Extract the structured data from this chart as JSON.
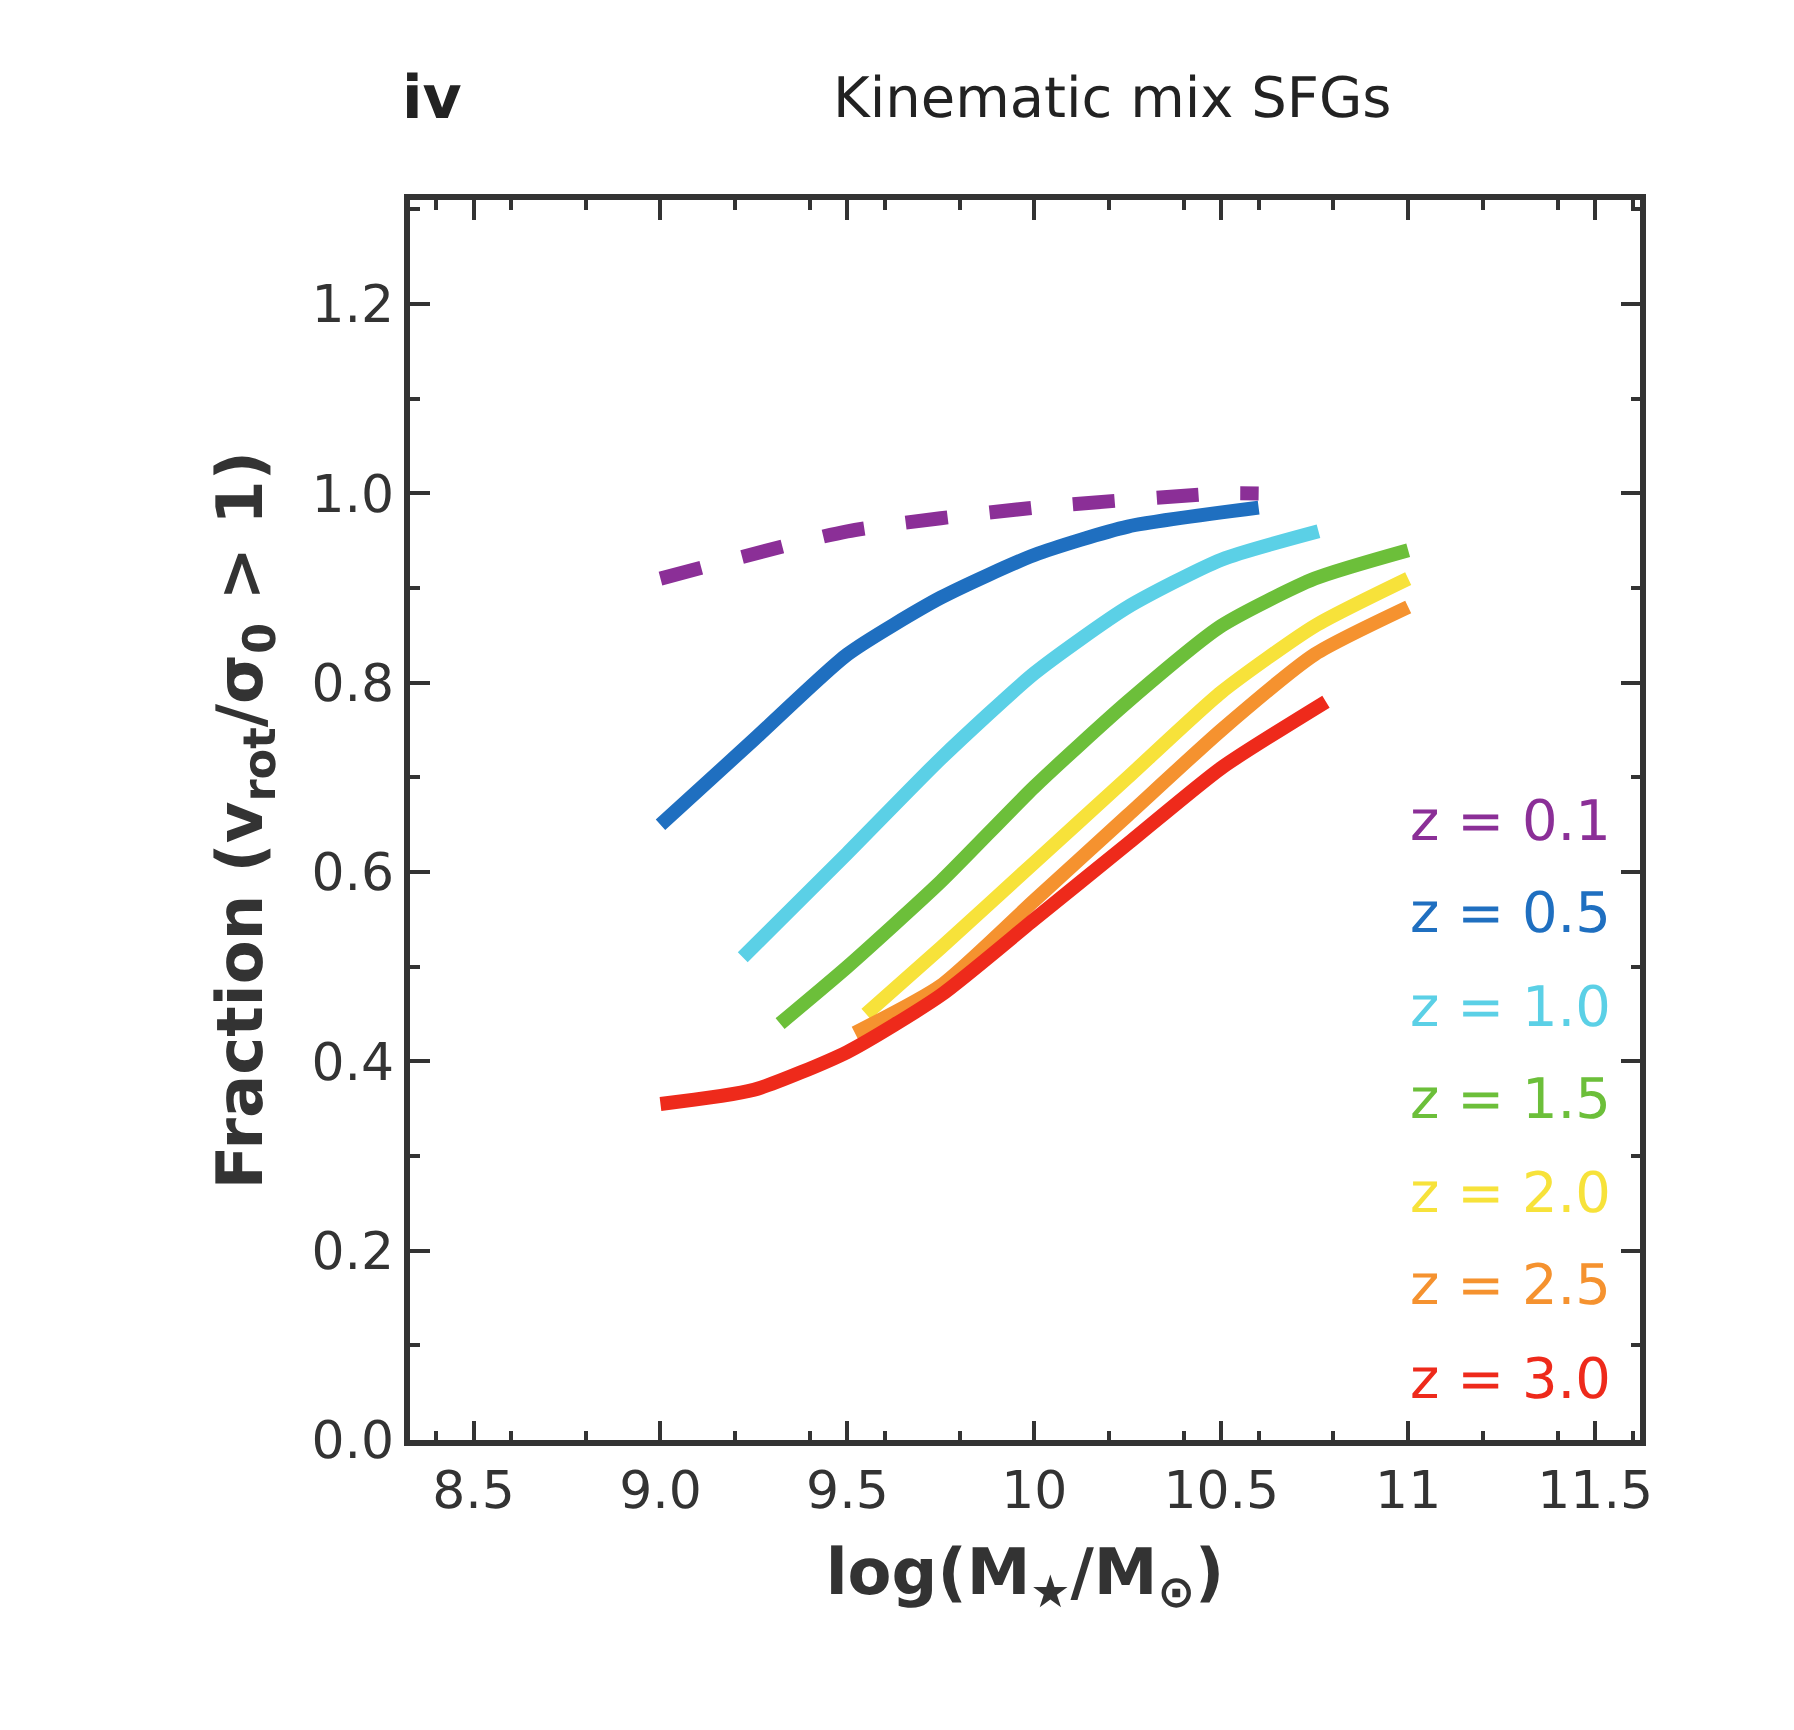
{
  "chart_data": {
    "type": "line",
    "title": "Kinematic mix SFGs",
    "annotations": [
      "iv"
    ],
    "xlabel": "log(M$_{★}$/M$_{⊙}$)",
    "ylabel": "Fraction (v$_{rot}$/σ$_{0}$ > 1)",
    "xlim": [
      8.33,
      11.62
    ],
    "ylim": [
      0,
      1.31
    ],
    "xticks": [
      8.5,
      {
        "value": 9,
        "label": "9.0"
      },
      9.5,
      10,
      10.5,
      11,
      11.5
    ],
    "yticks": [
      {
        "value": 0,
        "label": "0.0"
      },
      0.2,
      0.4,
      0.6,
      0.8,
      {
        "value": 1,
        "label": "1.0"
      },
      1.2
    ],
    "legend": "bottom right",
    "marker": "none",
    "line_style": "solid",
    "series": [
      {
        "name": "z = 0.1",
        "color": "#8b2f97",
        "line_style": "dashed",
        "x": [
          9.0,
          9.5,
          10.0,
          10.5,
          10.6
        ],
        "values": [
          0.91,
          0.96,
          0.985,
          1.0,
          1.0
        ]
      },
      {
        "name": "z = 0.5",
        "color": "#1f6fc0",
        "x": [
          9.0,
          9.25,
          9.5,
          9.75,
          10.0,
          10.25,
          10.6
        ],
        "values": [
          0.65,
          0.74,
          0.83,
          0.89,
          0.935,
          0.965,
          0.985
        ]
      },
      {
        "name": "z = 1.0",
        "color": "#5bd0e6",
        "x": [
          9.22,
          9.5,
          9.75,
          10.0,
          10.25,
          10.5,
          10.76
        ],
        "values": [
          0.51,
          0.62,
          0.72,
          0.81,
          0.88,
          0.93,
          0.96
        ]
      },
      {
        "name": "z = 1.5",
        "color": "#6cbf3a",
        "x": [
          9.32,
          9.5,
          9.75,
          10.0,
          10.25,
          10.5,
          10.75,
          11.0
        ],
        "values": [
          0.44,
          0.5,
          0.59,
          0.69,
          0.78,
          0.86,
          0.91,
          0.94
        ]
      },
      {
        "name": "z = 2.0",
        "color": "#f7e23a",
        "x": [
          9.55,
          9.75,
          10.0,
          10.25,
          10.5,
          10.75,
          11.0
        ],
        "values": [
          0.45,
          0.52,
          0.61,
          0.7,
          0.79,
          0.86,
          0.91
        ]
      },
      {
        "name": "z = 2.5",
        "color": "#f5922f",
        "x": [
          9.52,
          9.75,
          10.0,
          10.25,
          10.5,
          10.75,
          11.0
        ],
        "values": [
          0.43,
          0.48,
          0.57,
          0.66,
          0.75,
          0.83,
          0.88
        ]
      },
      {
        "name": "z = 3.0",
        "color": "#ee2a1b",
        "x": [
          9.0,
          9.25,
          9.5,
          9.75,
          10.0,
          10.25,
          10.5,
          10.78
        ],
        "values": [
          0.355,
          0.37,
          0.41,
          0.47,
          0.55,
          0.63,
          0.71,
          0.78
        ]
      }
    ]
  }
}
